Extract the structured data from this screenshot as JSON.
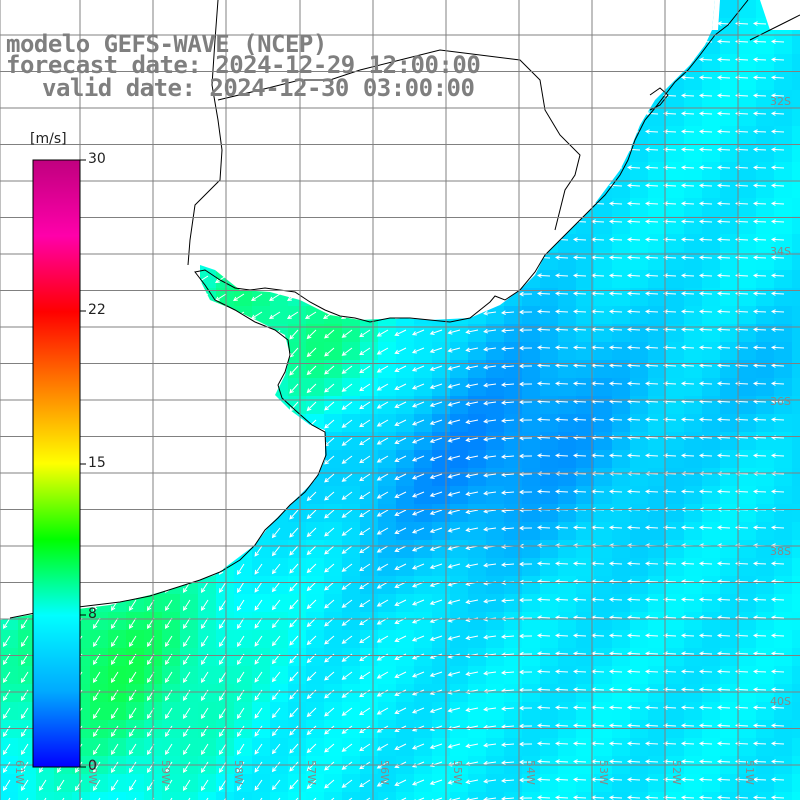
{
  "title": {
    "model": "modelo GEFS-WAVE (NCEP)",
    "forecast": "forecast date: 2024-12-29 12:00:00",
    "valid": "valid date: 2024-12-30 03:00:00"
  },
  "colorbar": {
    "unit": "[m/s]",
    "min": 0,
    "max": 30,
    "ticks": [
      "30",
      "22",
      "15",
      "8",
      "0"
    ],
    "stops": [
      "#0000ff",
      "#00aaff",
      "#00ffff",
      "#00ff00",
      "#ffff00",
      "#ff8000",
      "#ff0000",
      "#ff00aa",
      "#c0007f"
    ]
  },
  "map": {
    "lon_labels": [
      "61W",
      "60W",
      "59W",
      "58W",
      "57W",
      "56W",
      "55W",
      "54W",
      "53W",
      "52W",
      "51W"
    ],
    "lat_labels": [
      "32S",
      "34S",
      "36S",
      "38S",
      "40S"
    ],
    "land_color": "#ffffff",
    "grid_color": "#808080",
    "arrow_color": "#ffffff"
  }
}
